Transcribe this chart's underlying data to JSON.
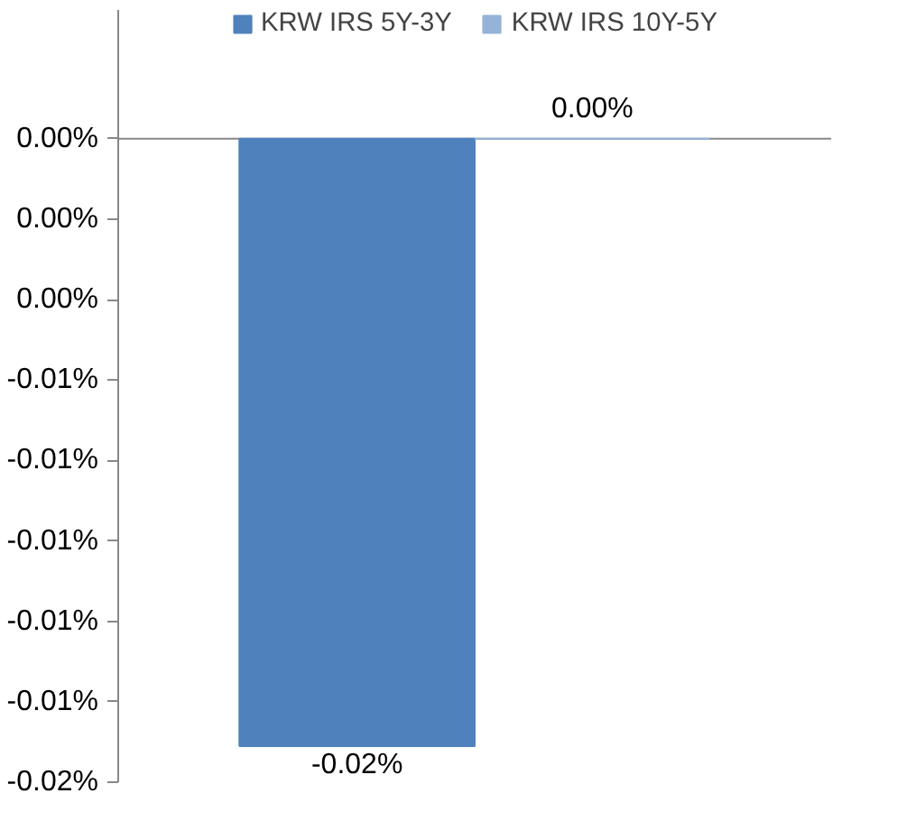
{
  "chart_data": {
    "type": "bar",
    "categories": [
      null
    ],
    "series": [
      {
        "name": "KRW IRS 5Y-3Y",
        "color": "#4f81bd",
        "values": [
          -0.0151
        ],
        "value_labels": [
          "-0.02%"
        ]
      },
      {
        "name": "KRW IRS 10Y-5Y",
        "color": "#95b3d7",
        "values": [
          0.0
        ],
        "value_labels": [
          "0.00%"
        ]
      }
    ],
    "ylim": [
      -0.016,
      0
    ],
    "yticks": [
      {
        "value": 0,
        "label": "0.00%"
      },
      {
        "value": -0.002,
        "label": "0.00%"
      },
      {
        "value": -0.004,
        "label": "0.00%"
      },
      {
        "value": -0.006,
        "label": "-0.01%"
      },
      {
        "value": -0.008,
        "label": "-0.01%"
      },
      {
        "value": -0.01,
        "label": "-0.01%"
      },
      {
        "value": -0.012,
        "label": "-0.01%"
      },
      {
        "value": -0.014,
        "label": "-0.01%"
      },
      {
        "value": -0.016,
        "label": "-0.02%"
      }
    ],
    "tick_labels": "y",
    "grid": false,
    "legend": "top"
  }
}
